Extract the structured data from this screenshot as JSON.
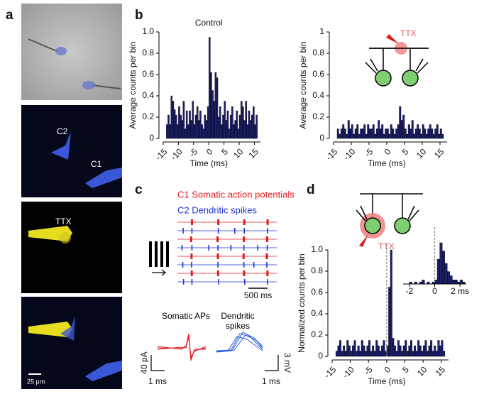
{
  "panels": [
    "a",
    "b",
    "c",
    "d"
  ],
  "panel_a": {
    "labels": [
      "C2",
      "C1",
      "TTX"
    ],
    "scale_bar": "25 μm"
  },
  "panel_c": {
    "trace_labels": [
      "Somatic APs",
      "Dendritic spikes"
    ],
    "scale_bars": [
      "40 pA",
      "1 ms",
      "3 mV",
      "1 ms"
    ]
  },
  "chart_data": [
    {
      "type": "histogram",
      "title": "Control",
      "ylabel": "Average counts per bin",
      "xlabel": "Time (ms)",
      "color": "#1c1f6b",
      "xlim": [
        -15,
        17
      ],
      "ylim": [
        0,
        1
      ],
      "xticks": [
        -15,
        -10,
        -5,
        0,
        5,
        10,
        15
      ],
      "yticks": [
        0,
        0.2,
        0.4,
        0.6,
        0.8,
        {
          "value": 1,
          "label": "1.0"
        }
      ],
      "bins": [
        -14,
        -13.5,
        -13,
        -12.5,
        -12,
        -11.5,
        -11,
        -10.5,
        -10,
        -9.5,
        -9,
        -8.5,
        -8,
        -7.5,
        -7,
        -6.5,
        -6,
        -5.5,
        -5,
        -4.5,
        -4,
        -3.5,
        -3,
        -2.5,
        -2,
        -1.5,
        -1,
        -0.5,
        0,
        0.5,
        1,
        1.5,
        2,
        2.5,
        3,
        3.5,
        4,
        4.5,
        5,
        5.5,
        6,
        6.5,
        7,
        7.5,
        8,
        8.5,
        9,
        9.5,
        10,
        10.5,
        11,
        11.5,
        12,
        12.5,
        13,
        13.5,
        14,
        14.5,
        15,
        15.5,
        16
      ],
      "values": [
        0.13,
        0.22,
        0.13,
        0.4,
        0.35,
        0.27,
        0.22,
        0.13,
        0.3,
        0.22,
        0.17,
        0.35,
        0.09,
        0.26,
        0.13,
        0.26,
        0.17,
        0.35,
        0.13,
        0.22,
        0.3,
        0.17,
        0.26,
        0.13,
        0.09,
        0.22,
        0.17,
        0.3,
        0.95,
        0.62,
        0.45,
        0.35,
        0.62,
        0.57,
        0.2,
        0.3,
        0.13,
        0.22,
        0.35,
        0.17,
        0.26,
        0.09,
        0.22,
        0.3,
        0.13,
        0.17,
        0.26,
        0.09,
        0.22,
        0.35,
        0.3,
        0.17,
        0.35,
        0.13,
        0.26,
        0.17,
        0.22,
        0.3,
        0.13,
        0.22
      ]
    },
    {
      "type": "histogram",
      "annotation": "TTX",
      "ylabel": "Average counts per bin",
      "xlabel": "Time (ms)",
      "color": "#1c1f6b",
      "xlim": [
        -15,
        17
      ],
      "ylim": [
        0,
        1
      ],
      "xticks": [
        -15,
        -10,
        -5,
        0,
        5,
        10,
        15
      ],
      "yticks": [
        0,
        0.2,
        0.4,
        0.6,
        0.8,
        1
      ],
      "bins": [
        -14,
        -13.5,
        -13,
        -12.5,
        -12,
        -11.5,
        -11,
        -10.5,
        -10,
        -9.5,
        -9,
        -8.5,
        -8,
        -7.5,
        -7,
        -6.5,
        -6,
        -5.5,
        -5,
        -4.5,
        -4,
        -3.5,
        -3,
        -2.5,
        -2,
        -1.5,
        -1,
        -0.5,
        0,
        0.5,
        1,
        1.5,
        2,
        2.5,
        3,
        3.5,
        4,
        4.5,
        5,
        5.5,
        6,
        6.5,
        7,
        7.5,
        8,
        8.5,
        9,
        9.5,
        10,
        10.5,
        11,
        11.5,
        12,
        12.5,
        13,
        13.5,
        14,
        14.5,
        15,
        15.5,
        16
      ],
      "values": [
        0.09,
        0.04,
        0.09,
        0.13,
        0.09,
        0.04,
        0.17,
        0.09,
        0.13,
        0.04,
        0.09,
        0.13,
        0.04,
        0.09,
        0.09,
        0.13,
        0.04,
        0.13,
        0.09,
        0.09,
        0.13,
        0.04,
        0.09,
        0.17,
        0.09,
        0.13,
        0.04,
        0.09,
        0.09,
        0.04,
        0.13,
        0.09,
        0.04,
        0.09,
        0.13,
        0.3,
        0.17,
        0.22,
        0.09,
        0.04,
        0.13,
        0.09,
        0.17,
        0.04,
        0.09,
        0.13,
        0.09,
        0.04,
        0.13,
        0.09,
        0.04,
        0.09,
        0.13,
        0.09,
        0.04,
        0.09,
        0.13,
        0.04,
        0.09,
        0.04
      ]
    },
    {
      "type": "histogram",
      "annotation": "TTX",
      "ylabel": "Normalized counts per bin",
      "xlabel": "Time (ms)",
      "color": "#1c1f6b",
      "vline": 0,
      "xlim": [
        -15,
        17
      ],
      "ylim": [
        0,
        1
      ],
      "xticks": [
        -15,
        -10,
        -5,
        0,
        5,
        10,
        15
      ],
      "yticks": [
        0,
        0.2,
        0.4,
        0.6,
        0.8,
        {
          "value": 1,
          "label": "1.0"
        }
      ],
      "bins": [
        -14,
        -13.5,
        -13,
        -12.5,
        -12,
        -11.5,
        -11,
        -10.5,
        -10,
        -9.5,
        -9,
        -8.5,
        -8,
        -7.5,
        -7,
        -6.5,
        -6,
        -5.5,
        -5,
        -4.5,
        -4,
        -3.5,
        -3,
        -2.5,
        -2,
        -1.5,
        -1,
        -0.5,
        0,
        0.5,
        1,
        1.5,
        2,
        2.5,
        3,
        3.5,
        4,
        4.5,
        5,
        5.5,
        6,
        6.5,
        7,
        7.5,
        8,
        8.5,
        9,
        9.5,
        10,
        10.5,
        11,
        11.5,
        12,
        12.5,
        13,
        13.5,
        14,
        14.5,
        15,
        15.5,
        16
      ],
      "values": [
        0.05,
        0.1,
        0.15,
        0.05,
        0.1,
        0.05,
        0.15,
        0.1,
        0.05,
        0.1,
        0.15,
        0.05,
        0.1,
        0.05,
        0.15,
        0.1,
        0.05,
        0.1,
        0.15,
        0.05,
        0.1,
        0.05,
        0.15,
        0.1,
        0.05,
        0.1,
        0.15,
        0.05,
        0.1,
        0.65,
        1,
        0.17,
        0.1,
        0.05,
        0.15,
        0.1,
        0.05,
        0.1,
        0.15,
        0.05,
        0.1,
        0.15,
        0.05,
        0.1,
        0.05,
        0.15,
        0.1,
        0.05,
        0.1,
        0.15,
        0.05,
        0.1,
        0.15,
        0.05,
        0.1,
        0.05,
        0.15,
        0.1,
        0.15,
        0.05
      ]
    },
    {
      "type": "histogram",
      "color": "#1c1f6b",
      "vline": 0,
      "xlim": [
        -2.5,
        2.5
      ],
      "ylim": [
        0,
        1
      ],
      "xticks": [
        -2,
        0,
        {
          "value": 2,
          "label": "2 ms"
        }
      ],
      "bins": [
        -2,
        -1.8,
        -1.6,
        -1.4,
        -1.2,
        -1,
        -0.8,
        -0.6,
        -0.4,
        -0.2,
        0,
        0.2,
        0.4,
        0.6,
        0.8,
        1,
        1.2,
        1.4,
        1.6,
        1.8,
        2,
        2.2,
        2.4
      ],
      "values": [
        0.05,
        0,
        0.05,
        0,
        0.05,
        0.1,
        0,
        0.05,
        0,
        0.05,
        0.1,
        0.6,
        1,
        0.8,
        0.5,
        0.3,
        0.2,
        0.1,
        0.1,
        0.05,
        0.1,
        0.05
      ]
    },
    {
      "type": "raster",
      "xlim": [
        0,
        2600
      ],
      "scalebar": {
        "value": 500,
        "label": "500 ms"
      },
      "series": [
        {
          "name": "C1 Somatic action potentials",
          "color": "#e31a1c",
          "rows": [
            [
              380,
              1070,
              1750,
              2360
            ],
            [
              360,
              1050,
              1740,
              2350
            ],
            [
              370,
              1060,
              1730,
              2340
            ],
            [
              375,
              1065,
              1745,
              2355
            ]
          ]
        },
        {
          "name": "C2 Dendritic spikes",
          "color": "#1f33d6",
          "rows": [
            [
              150,
              380,
              1070,
              1500,
              1750,
              2360
            ],
            [
              120,
              380,
              820,
              1060,
              1400,
              1740,
              2100,
              2350
            ],
            [
              140,
              370,
              1060,
              1740,
              2000,
              2340
            ],
            [
              160,
              380,
              1080,
              1760,
              2360
            ]
          ]
        }
      ]
    }
  ]
}
